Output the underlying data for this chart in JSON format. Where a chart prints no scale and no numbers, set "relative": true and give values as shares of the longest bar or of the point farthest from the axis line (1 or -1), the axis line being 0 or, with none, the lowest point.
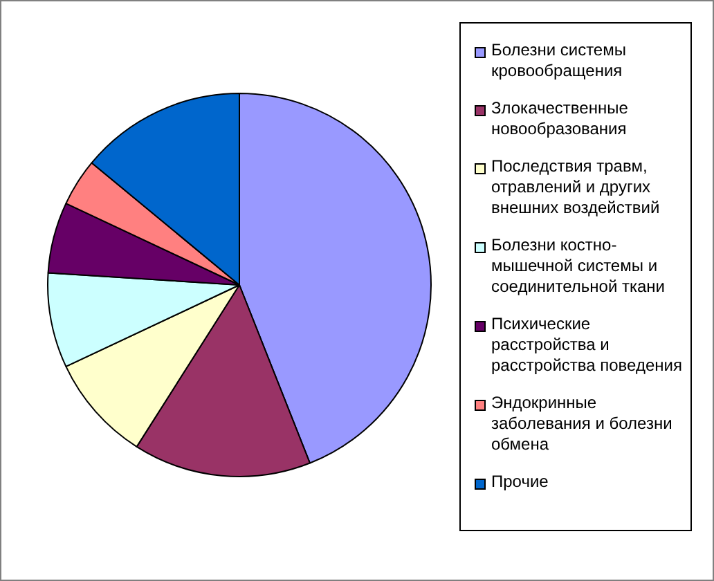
{
  "chart_data": {
    "type": "pie",
    "relative": true,
    "legend": "right",
    "categories": [
      "Болезни системы кровообращения",
      "Злокачественные новообразования",
      "Последствия травм, отравлений и других внешних воздействий",
      "Болезни костно-мышечной системы и соединительной ткани",
      "Психические расстройства и расстройства поведения",
      "Эндокринные заболевания и болезни обмена",
      "Прочие"
    ],
    "values": [
      44,
      15,
      9,
      8,
      6,
      4,
      14
    ],
    "colors": [
      "#9999ff",
      "#993366",
      "#ffffcc",
      "#ccffff",
      "#660066",
      "#ff8080",
      "#0066cc"
    ]
  }
}
